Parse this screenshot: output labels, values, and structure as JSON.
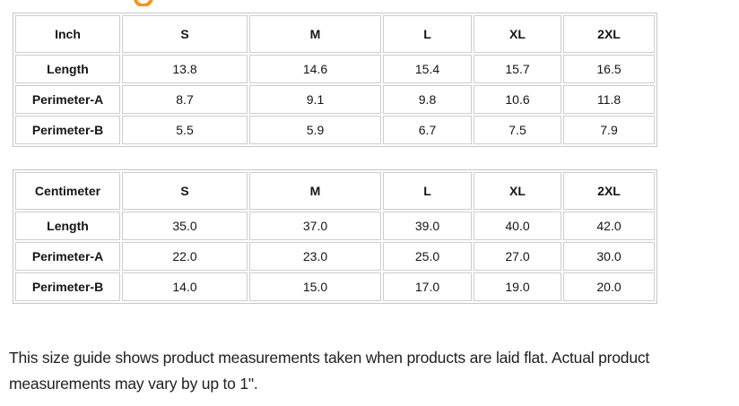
{
  "decor": {
    "heading_accent_color": "#f7941d"
  },
  "tables": [
    {
      "unit_label": "Inch",
      "sizes": [
        "S",
        "M",
        "L",
        "XL",
        "2XL"
      ],
      "rows": [
        {
          "label": "Length",
          "values": [
            "13.8",
            "14.6",
            "15.4",
            "15.7",
            "16.5"
          ]
        },
        {
          "label": "Perimeter-A",
          "values": [
            "8.7",
            "9.1",
            "9.8",
            "10.6",
            "11.8"
          ]
        },
        {
          "label": "Perimeter-B",
          "values": [
            "5.5",
            "5.9",
            "6.7",
            "7.5",
            "7.9"
          ]
        }
      ]
    },
    {
      "unit_label": "Centimeter",
      "sizes": [
        "S",
        "M",
        "L",
        "XL",
        "2XL"
      ],
      "rows": [
        {
          "label": "Length",
          "values": [
            "35.0",
            "37.0",
            "39.0",
            "40.0",
            "42.0"
          ]
        },
        {
          "label": "Perimeter-A",
          "values": [
            "22.0",
            "23.0",
            "25.0",
            "27.0",
            "30.0"
          ]
        },
        {
          "label": "Perimeter-B",
          "values": [
            "14.0",
            "15.0",
            "17.0",
            "19.0",
            "20.0"
          ]
        }
      ]
    }
  ],
  "footer": {
    "lines": [
      "This size guide shows product measurements taken when products are laid flat. Actual product",
      "measurements may vary by up to 1\"."
    ]
  }
}
